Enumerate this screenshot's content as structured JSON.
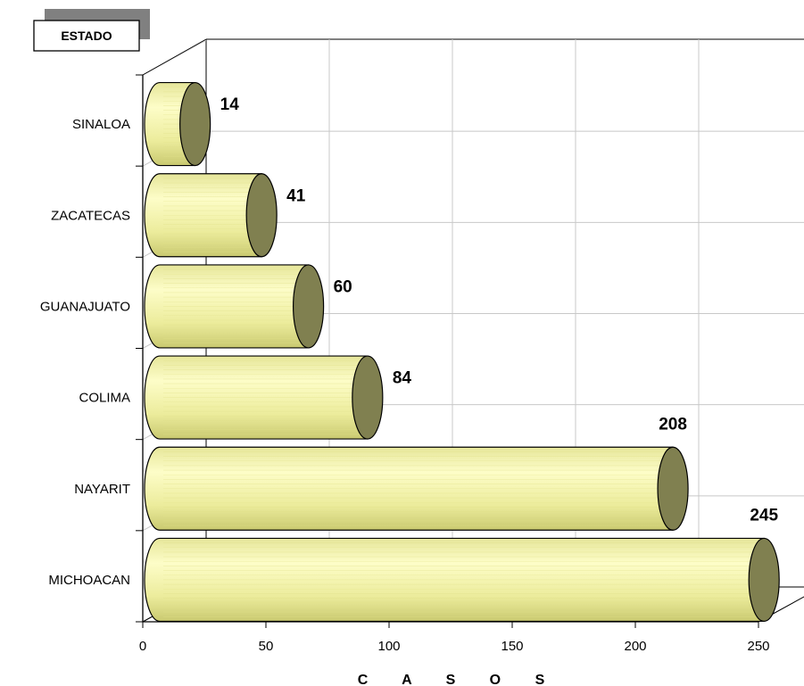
{
  "chart_data": {
    "type": "bar",
    "orientation": "horizontal",
    "style": "3d-cylinder",
    "categories": [
      "SINALOA",
      "ZACATECAS",
      "GUANAJUATO",
      "COLIMA",
      "NAYARIT",
      "MICHOACAN"
    ],
    "values": [
      14,
      41,
      60,
      84,
      208,
      245
    ],
    "xlabel": "C A S O S",
    "legend_title": "ESTADO",
    "xlim": [
      0,
      250
    ],
    "xticks": [
      0,
      50,
      100,
      150,
      200,
      250
    ],
    "grid": true,
    "colors": {
      "cylinder_light": "#fdfdc8",
      "cylinder_mid": "#eaea92",
      "cylinder_dark": "#d6d67a",
      "cylinder_end": "#808050",
      "grid": "#c8c8c8",
      "axis": "#000000"
    }
  }
}
